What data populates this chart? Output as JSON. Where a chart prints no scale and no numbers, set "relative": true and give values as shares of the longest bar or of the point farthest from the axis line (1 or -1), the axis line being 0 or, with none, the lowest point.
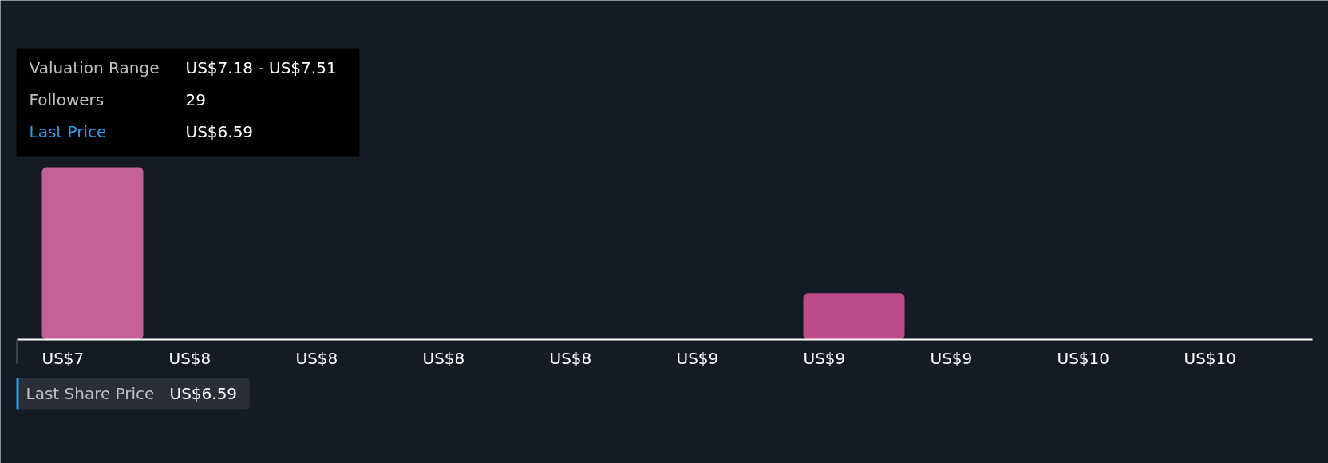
{
  "chart_data": {
    "type": "bar",
    "relative": true,
    "categories": [
      "US$7",
      "US$8",
      "US$8",
      "US$8",
      "US$8",
      "US$9",
      "US$9",
      "US$9",
      "US$10",
      "US$10"
    ],
    "values": [
      1,
      null,
      null,
      null,
      null,
      null,
      0.27,
      null,
      null,
      null
    ],
    "colors": [
      "#c46199",
      null,
      null,
      null,
      null,
      null,
      "#bd4b8a",
      null,
      null,
      null
    ],
    "grid": false,
    "annotations": [
      "Valuation Range",
      "US$7.18 - US$7.51",
      "Followers",
      "29",
      "Last Price",
      "US$6.59",
      "Last Share Price",
      "US$6.59"
    ]
  }
}
